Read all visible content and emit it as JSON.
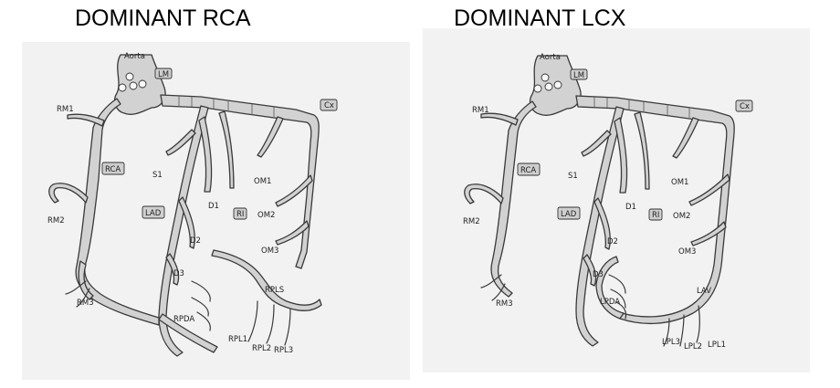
{
  "panels": [
    {
      "title": "DOMINANT RCA",
      "labels": {
        "aorta": "Aorta",
        "lm": "LM",
        "cx": "Cx",
        "rca": "RCA",
        "lad": "LAD",
        "ri": "RI",
        "rm1": "RM1",
        "rm2": "RM2",
        "rm3": "RM3",
        "s1": "S1",
        "d1": "D1",
        "d2": "D2",
        "d3": "D3",
        "om1": "OM1",
        "om2": "OM2",
        "om3": "OM3",
        "rpda": "RPDA",
        "rpls": "RPLS",
        "rpl1": "RPL1",
        "rpl2": "RPL2",
        "rpl3": "RPL3"
      }
    },
    {
      "title": "DOMINANT LCX",
      "labels": {
        "aorta": "Aorta",
        "lm": "LM",
        "cx": "Cx",
        "rca": "RCA",
        "lad": "LAD",
        "ri": "RI",
        "rm1": "RM1",
        "rm2": "RM2",
        "rm3": "RM3",
        "s1": "S1",
        "d1": "D1",
        "d2": "D2",
        "d3": "D3",
        "om1": "OM1",
        "om2": "OM2",
        "om3": "OM3",
        "lpda": "LPDA",
        "lav": "LAV",
        "lpl3": "LPL3",
        "lpl2": "LPL2",
        "lpl1": "LPL1"
      }
    }
  ]
}
